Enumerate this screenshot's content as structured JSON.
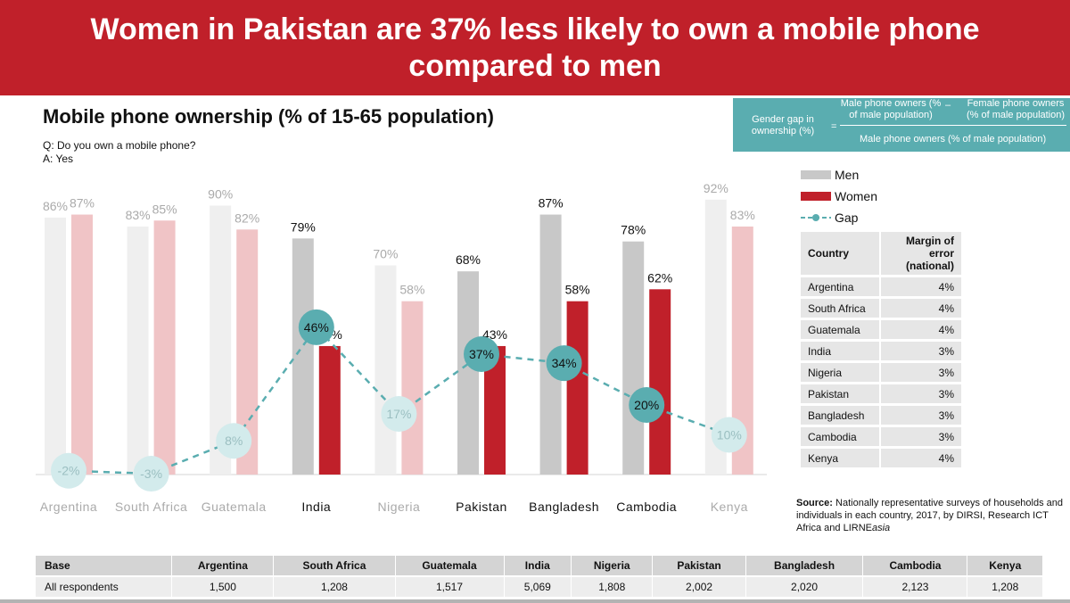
{
  "banner": {
    "title": "Women in Pakistan are 37% less likely to own a mobile phone compared to men"
  },
  "question": {
    "q": "Q: Do you own a mobile phone?",
    "a": "A: Yes"
  },
  "formula": {
    "label": "Gender gap in ownership (%)",
    "equals": "=",
    "numerator_left": "Male phone owners (% of male population)",
    "minus": "–",
    "numerator_right": "Female phone owners (% of male population)",
    "denominator": "Male phone owners (% of male population)"
  },
  "legend": {
    "men": "Men",
    "women": "Women",
    "gap": "Gap"
  },
  "colors": {
    "men": "#c8c8c8",
    "men_faded": "#efefef",
    "women": "#c0202a",
    "women_faded": "#f0c4c6",
    "gap": "#5aadb0",
    "gap_faded": "#d3ebec",
    "banner": "#c0202a"
  },
  "chart_data": {
    "type": "bar",
    "title": "Mobile phone ownership (% of 15-65 population)",
    "categories": [
      "Argentina",
      "South Africa",
      "Guatemala",
      "India",
      "Nigeria",
      "Pakistan",
      "Bangladesh",
      "Cambodia",
      "Kenya"
    ],
    "highlighted": [
      false,
      false,
      false,
      true,
      false,
      true,
      true,
      true,
      false
    ],
    "series": [
      {
        "name": "Men",
        "values": [
          86,
          83,
          90,
          79,
          70,
          68,
          87,
          78,
          92
        ]
      },
      {
        "name": "Women",
        "values": [
          87,
          85,
          82,
          43,
          58,
          43,
          58,
          62,
          83
        ]
      },
      {
        "name": "Gap",
        "values": [
          -2,
          -3,
          8,
          46,
          17,
          37,
          34,
          20,
          10
        ]
      }
    ],
    "men_labels": [
      "86%",
      "83%",
      "90%",
      "79%",
      "70%",
      "68%",
      "87%",
      "78%",
      "92%"
    ],
    "women_labels": [
      "87%",
      "85%",
      "82%",
      "43%",
      "58%",
      "43%",
      "58%",
      "62%",
      "83%"
    ],
    "gap_labels": [
      "-2%",
      "-3%",
      "8%",
      "46%",
      "17%",
      "37%",
      "34%",
      "20%",
      "10%"
    ],
    "ylim": [
      0,
      100
    ]
  },
  "moe_table": {
    "headers": [
      "Country",
      "Margin of error (national)"
    ],
    "rows": [
      [
        "Argentina",
        "4%"
      ],
      [
        "South Africa",
        "4%"
      ],
      [
        "Guatemala",
        "4%"
      ],
      [
        "India",
        "3%"
      ],
      [
        "Nigeria",
        "3%"
      ],
      [
        "Pakistan",
        "3%"
      ],
      [
        "Bangladesh",
        "3%"
      ],
      [
        "Cambodia",
        "3%"
      ],
      [
        "Kenya",
        "4%"
      ]
    ]
  },
  "source": {
    "label": "Source:",
    "text": "Nationally representative surveys of households and individuals in each country, 2017, by DIRSI, Research ICT Africa and LIRNE",
    "italic": "asia"
  },
  "base_table": {
    "headers": [
      "Base",
      "Argentina",
      "South Africa",
      "Guatemala",
      "India",
      "Nigeria",
      "Pakistan",
      "Bangladesh",
      "Cambodia",
      "Kenya"
    ],
    "row": [
      "All respondents",
      "1,500",
      "1,208",
      "1,517",
      "5,069",
      "1,808",
      "2,002",
      "2,020",
      "2,123",
      "1,208"
    ]
  }
}
